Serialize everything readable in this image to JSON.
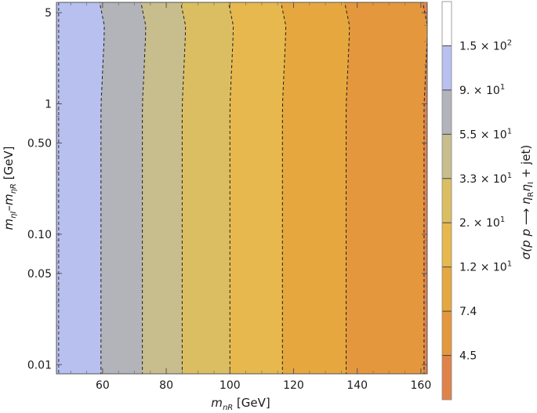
{
  "chart_data": {
    "type": "contour",
    "x_axis": {
      "label_html": "m_{η_R} [GeV]",
      "label_main": "m",
      "label_sub": "ηR",
      "label_unit": " [GeV]",
      "range": [
        45.5,
        162
      ],
      "ticks": [
        60,
        80,
        100,
        120,
        140,
        160
      ],
      "tick_labels": [
        "60",
        "80",
        "100",
        "120",
        "140",
        "160"
      ]
    },
    "y_axis": {
      "label_part1": "m",
      "label_sub1": "ηI",
      "label_mid": "–m",
      "label_sub2": "ηR",
      "label_unit": " [GeV]",
      "scale": "log",
      "range": [
        0.0085,
        6.0
      ],
      "ticks": [
        0.01,
        0.05,
        0.1,
        0.5,
        1,
        5
      ],
      "tick_labels": [
        "0.01",
        "0.05",
        "0.10",
        "0.50",
        "1",
        "5"
      ]
    },
    "colorbar": {
      "label_prefix": "σ(p p ⟶ ",
      "label_eta": "η",
      "label_sub1": "R",
      "label_eta2": "η",
      "label_sub2": "I",
      "label_suffix": " + jet)",
      "levels": [
        {
          "mantissa": "4.5",
          "exp": ""
        },
        {
          "mantissa": "7.4",
          "exp": ""
        },
        {
          "mantissa": "1.2 × 10",
          "exp": "1"
        },
        {
          "mantissa": "2. × 10",
          "exp": "1"
        },
        {
          "mantissa": "3.3 × 10",
          "exp": "1"
        },
        {
          "mantissa": "5.5 × 10",
          "exp": "1"
        },
        {
          "mantissa": "9. × 10",
          "exp": "1"
        },
        {
          "mantissa": "1.5 × 10",
          "exp": "2"
        }
      ],
      "band_colors": [
        "#e0834a",
        "#e5973d",
        "#e6a83e",
        "#e6b84e",
        "#dcbe62",
        "#c8bd8d",
        "#b2b4b9",
        "#b7c0ef",
        "#ffffff"
      ]
    },
    "contour_boundaries_x": [
      59.5,
      72.5,
      85,
      100,
      116.5,
      136.5,
      161
    ],
    "region_colors": [
      "#b7c0ef",
      "#b2b4b9",
      "#c8bd8d",
      "#dcbe62",
      "#e6b84e",
      "#e6a83e",
      "#e5973d",
      "#e0834a"
    ],
    "grid": false
  }
}
